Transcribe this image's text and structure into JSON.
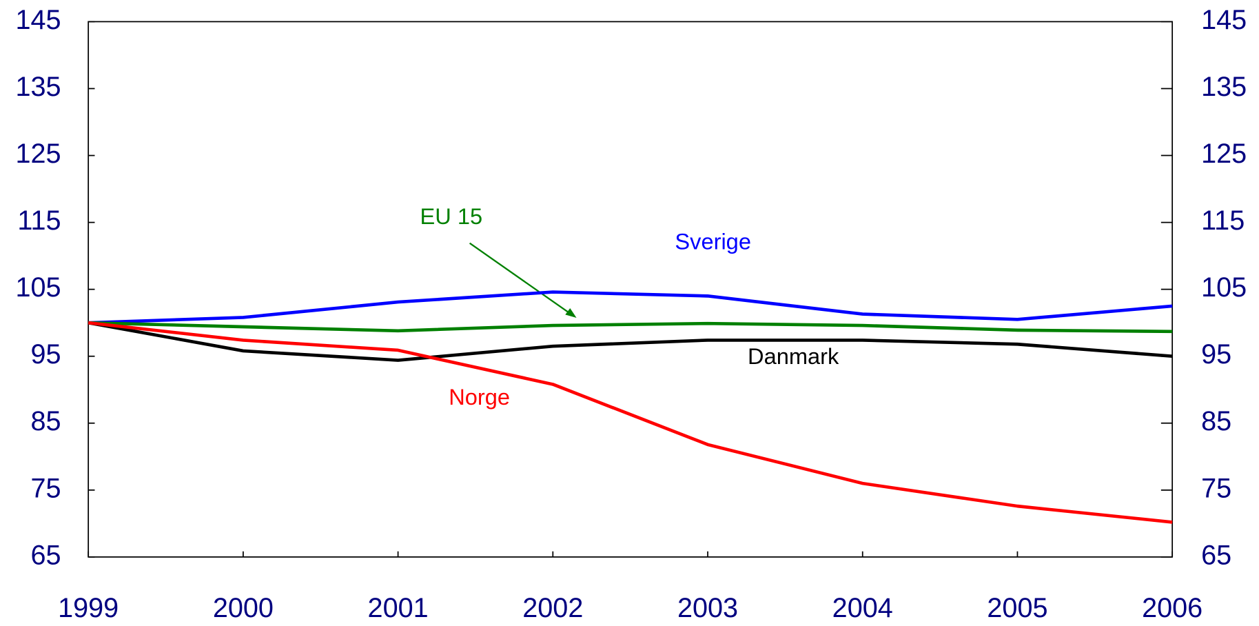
{
  "chart_data": {
    "type": "line",
    "x": [
      1999,
      2000,
      2001,
      2002,
      2003,
      2004,
      2005,
      2006
    ],
    "xlim": [
      1999,
      2006
    ],
    "xticks": [
      1999,
      2000,
      2001,
      2002,
      2003,
      2004,
      2005,
      2006
    ],
    "ylim": [
      65,
      145
    ],
    "yticks": [
      65,
      75,
      85,
      95,
      105,
      115,
      125,
      135,
      145
    ],
    "y2lim": [
      65,
      145
    ],
    "y2ticks": [
      65,
      75,
      85,
      95,
      105,
      115,
      125,
      135,
      145
    ],
    "series": [
      {
        "name": "Sverige",
        "color": "#0000ff",
        "values": [
          100,
          100.8,
          103.1,
          104.6,
          104.0,
          101.3,
          100.5,
          102.5
        ]
      },
      {
        "name": "EU 15",
        "color": "#008000",
        "values": [
          100,
          99.4,
          98.8,
          99.6,
          99.9,
          99.6,
          98.9,
          98.7
        ]
      },
      {
        "name": "Danmark",
        "color": "#000000",
        "values": [
          100,
          95.8,
          94.4,
          96.5,
          97.4,
          97.4,
          96.8,
          95.0
        ]
      },
      {
        "name": "Norge",
        "color": "#ff0000",
        "values": [
          100,
          97.4,
          95.9,
          90.8,
          81.8,
          76.0,
          72.6,
          70.2
        ]
      }
    ]
  }
}
